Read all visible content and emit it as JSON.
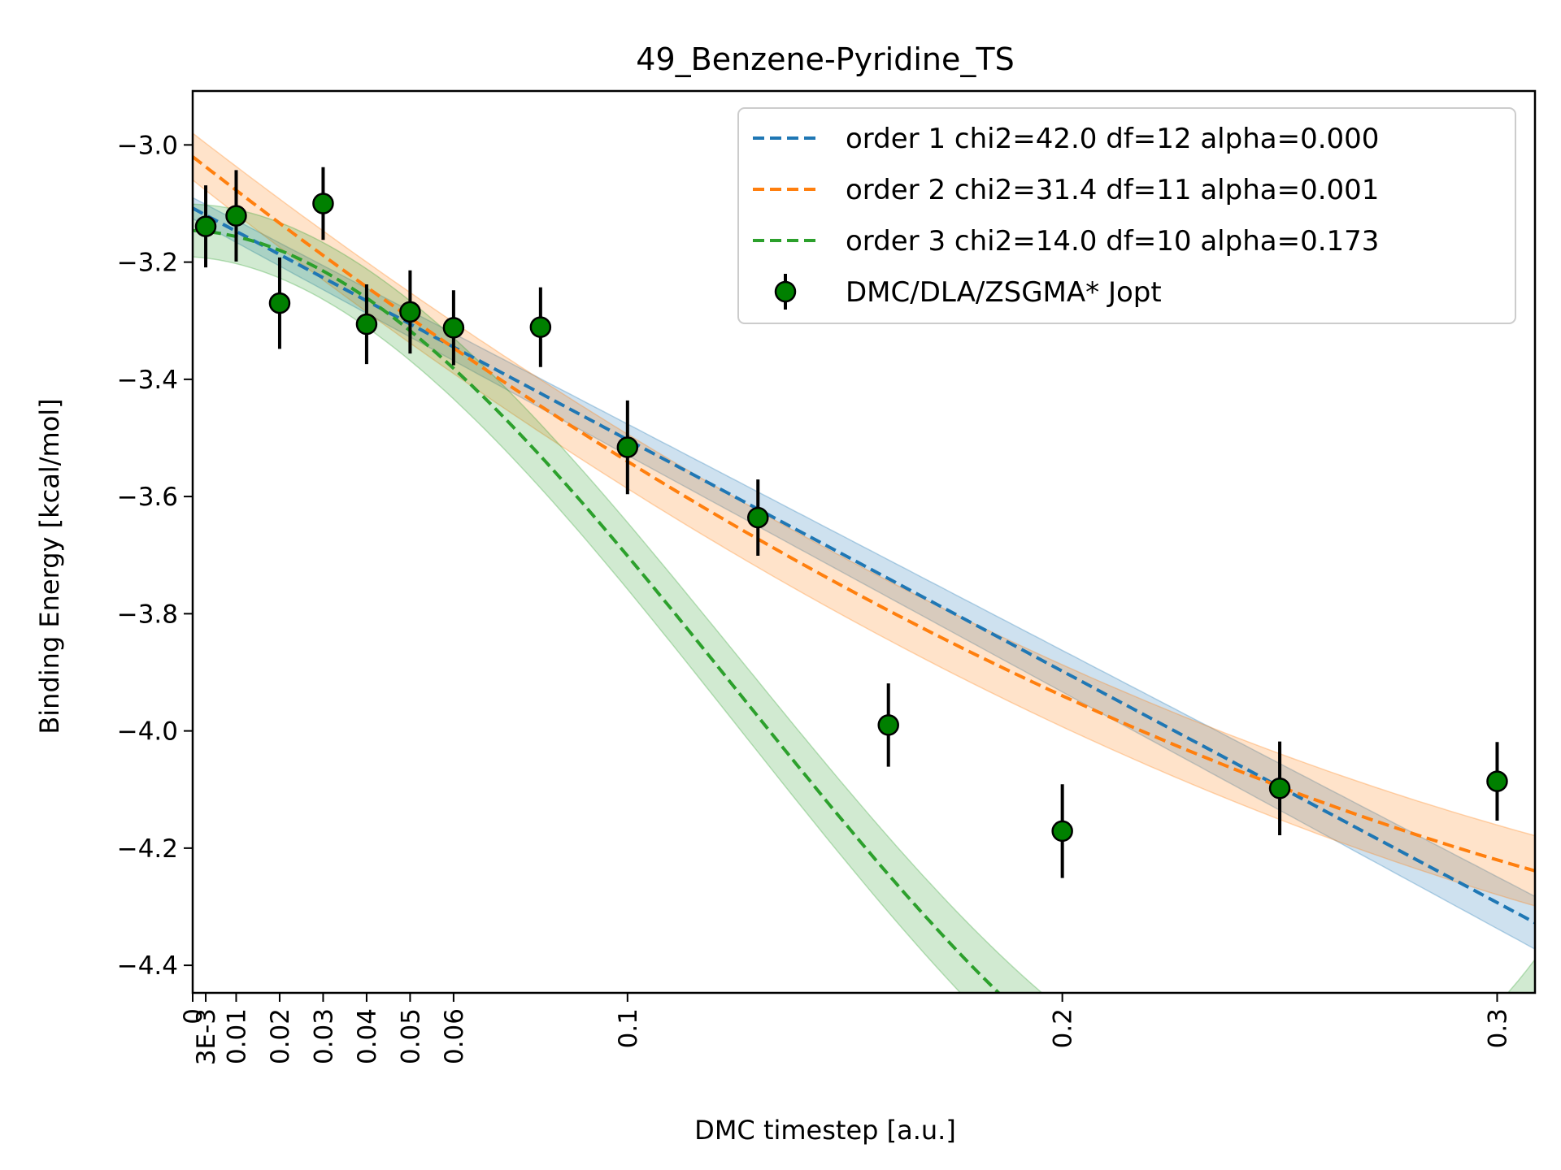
{
  "chart_data": {
    "type": "scatter",
    "title": "49_Benzene-Pyridine_TS",
    "xlabel": "DMC timestep [a.u.]",
    "ylabel": "Binding Energy [kcal/mol]",
    "xlim": [
      0,
      0.3087
    ],
    "ylim": [
      -4.447,
      -2.908
    ],
    "grid": false,
    "legend_position": "top-right",
    "x_ticks": [
      {
        "value": 0,
        "label": "0"
      },
      {
        "value": 0.003,
        "label": "3E-3"
      },
      {
        "value": 0.01,
        "label": "0.01"
      },
      {
        "value": 0.02,
        "label": "0.02"
      },
      {
        "value": 0.03,
        "label": "0.03"
      },
      {
        "value": 0.04,
        "label": "0.04"
      },
      {
        "value": 0.05,
        "label": "0.05"
      },
      {
        "value": 0.06,
        "label": "0.06"
      },
      {
        "value": 0.1,
        "label": "0.1"
      },
      {
        "value": 0.2,
        "label": "0.2"
      },
      {
        "value": 0.3,
        "label": "0.3"
      }
    ],
    "y_ticks": [
      {
        "value": -3.0,
        "label": "−3.0"
      },
      {
        "value": -3.2,
        "label": "−3.2"
      },
      {
        "value": -3.4,
        "label": "−3.4"
      },
      {
        "value": -3.6,
        "label": "−3.6"
      },
      {
        "value": -3.8,
        "label": "−3.8"
      },
      {
        "value": -4.0,
        "label": "−4.0"
      },
      {
        "value": -4.2,
        "label": "−4.2"
      },
      {
        "value": -4.4,
        "label": "−4.4"
      }
    ],
    "data_series": {
      "name": "DMC/DLA/ZSGMA* Jopt",
      "color": "#008000",
      "points": [
        {
          "x": 0.003,
          "y": -3.139,
          "err": 0.07
        },
        {
          "x": 0.01,
          "y": -3.121,
          "err": 0.078
        },
        {
          "x": 0.02,
          "y": -3.27,
          "err": 0.078
        },
        {
          "x": 0.03,
          "y": -3.1,
          "err": 0.062
        },
        {
          "x": 0.04,
          "y": -3.306,
          "err": 0.068
        },
        {
          "x": 0.05,
          "y": -3.285,
          "err": 0.071
        },
        {
          "x": 0.06,
          "y": -3.312,
          "err": 0.064
        },
        {
          "x": 0.08,
          "y": -3.311,
          "err": 0.068
        },
        {
          "x": 0.1,
          "y": -3.516,
          "err": 0.08
        },
        {
          "x": 0.13,
          "y": -3.636,
          "err": 0.065
        },
        {
          "x": 0.16,
          "y": -3.99,
          "err": 0.071
        },
        {
          "x": 0.2,
          "y": -4.171,
          "err": 0.08
        },
        {
          "x": 0.25,
          "y": -4.098,
          "err": 0.08
        },
        {
          "x": 0.3,
          "y": -4.086,
          "err": 0.067
        }
      ]
    },
    "fits": [
      {
        "name": "order 1 chi2=42.0 df=12 alpha=0.000",
        "color": "#1f77b4",
        "coefficients": [
          -3.108,
          -3.95
        ],
        "band": [
          0.018,
          0.045
        ]
      },
      {
        "name": "order 2 chi2=31.4 df=11 alpha=0.001",
        "color": "#ff7f0e",
        "coefficients": [
          -3.02,
          -5.8,
          6.0
        ],
        "band": [
          0.04,
          0.06
        ]
      },
      {
        "name": "order 3 chi2=14.0 df=10 alpha=0.173",
        "color": "#2ca02c",
        "coefficients": [
          -3.146,
          -0.35,
          -70.84,
          188.08
        ],
        "band": [
          0.045,
          0.082
        ]
      }
    ]
  }
}
